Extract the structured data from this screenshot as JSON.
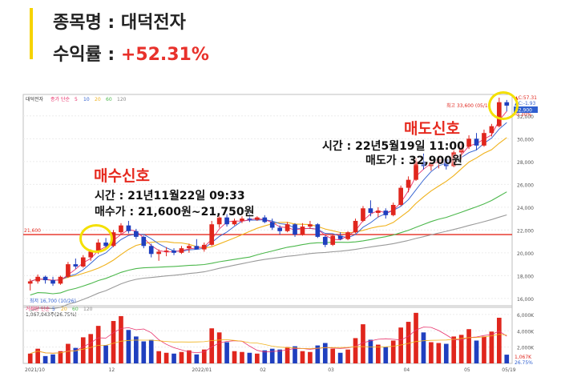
{
  "header": {
    "stock_label": "종목명 : ",
    "stock_name": "대덕전자",
    "return_label": "수익률 : ",
    "return_value": "+52.31%"
  },
  "chart_data": {
    "type": "candlestick",
    "panel_label": "대덕전자",
    "ma_legend": [
      "종가 단순",
      "5",
      "10",
      "20",
      "60",
      "120"
    ],
    "ma_colors": {
      "ma5": "#e8326b",
      "ma10": "#2f5fd0",
      "ma20": "#f0b21c",
      "ma60": "#4cb84c",
      "ma120": "#9a9a9a"
    },
    "up_color": "#e0261d",
    "down_color": "#1f3fbf",
    "y_ticks": [
      16000,
      18000,
      20000,
      22000,
      24000,
      26000,
      28000,
      30000,
      32000
    ],
    "ylim": [
      15500,
      33600
    ],
    "x_labels": [
      "2021/10",
      "12",
      "2022/01",
      "02",
      "03",
      "04",
      "05",
      "05/19"
    ],
    "reference_line": {
      "label": "21,600",
      "value": 21600,
      "color": "#e62a1f"
    },
    "low_annotation": "최저 16,700 (10/26)",
    "high_annotation": "최고 33,600 (05/1",
    "right_axis_labels": {
      "top1": "▲C:57.31",
      "top2": "▲C:-1.93",
      "pct": "-0.30%",
      "current": "32,900"
    },
    "candles": [
      [
        17300,
        17700,
        16700,
        17500
      ],
      [
        17500,
        18100,
        17300,
        17900
      ],
      [
        17900,
        18000,
        17300,
        17600
      ],
      [
        17600,
        17900,
        17100,
        17300
      ],
      [
        17300,
        18000,
        17200,
        17900
      ],
      [
        17900,
        19200,
        17800,
        19000
      ],
      [
        19000,
        19500,
        18600,
        18800
      ],
      [
        18800,
        19800,
        18700,
        19600
      ],
      [
        19600,
        20300,
        19300,
        20100
      ],
      [
        20100,
        21200,
        19900,
        20900
      ],
      [
        20900,
        21300,
        20300,
        20600
      ],
      [
        20600,
        22000,
        20500,
        21800
      ],
      [
        21800,
        22600,
        21600,
        22400
      ],
      [
        22400,
        22800,
        21700,
        21900
      ],
      [
        21900,
        22100,
        21200,
        21400
      ],
      [
        21400,
        21500,
        20400,
        20600
      ],
      [
        20600,
        20800,
        19600,
        19900
      ],
      [
        19900,
        20300,
        19300,
        20100
      ],
      [
        20100,
        20500,
        19700,
        20200
      ],
      [
        20200,
        20400,
        19800,
        20000
      ],
      [
        20000,
        20600,
        19900,
        20400
      ],
      [
        20400,
        20800,
        20000,
        20600
      ],
      [
        20600,
        21200,
        20300,
        20300
      ],
      [
        20300,
        20900,
        20100,
        20700
      ],
      [
        20700,
        22800,
        20600,
        22500
      ],
      [
        22500,
        23300,
        22200,
        23100
      ],
      [
        23100,
        23400,
        22300,
        22500
      ],
      [
        22500,
        23000,
        22400,
        22800
      ],
      [
        22800,
        23200,
        22600,
        23000
      ],
      [
        23000,
        23500,
        22700,
        22900
      ],
      [
        22900,
        23200,
        22800,
        23100
      ],
      [
        23100,
        23300,
        22600,
        22700
      ],
      [
        22700,
        23000,
        22000,
        22200
      ],
      [
        22200,
        22400,
        21600,
        21900
      ],
      [
        21900,
        22700,
        21800,
        22500
      ],
      [
        22500,
        22600,
        21400,
        21600
      ],
      [
        21600,
        22600,
        21500,
        22300
      ],
      [
        22300,
        22800,
        22100,
        22500
      ],
      [
        22500,
        22600,
        21300,
        21400
      ],
      [
        21400,
        21500,
        20500,
        20700
      ],
      [
        20700,
        21600,
        20600,
        21500
      ],
      [
        21500,
        21800,
        21100,
        21200
      ],
      [
        21200,
        21900,
        21100,
        21800
      ],
      [
        21800,
        23000,
        21700,
        22800
      ],
      [
        22800,
        24100,
        22700,
        23900
      ],
      [
        23900,
        24600,
        23200,
        23500
      ],
      [
        23500,
        24000,
        23100,
        23700
      ],
      [
        23700,
        23900,
        23000,
        23300
      ],
      [
        23300,
        24400,
        23200,
        24200
      ],
      [
        24200,
        25900,
        24100,
        25700
      ],
      [
        25700,
        26700,
        25300,
        26400
      ],
      [
        26400,
        28300,
        26300,
        28000
      ],
      [
        28000,
        28700,
        27300,
        27600
      ],
      [
        27600,
        28200,
        27200,
        27900
      ],
      [
        27900,
        28500,
        27400,
        28200
      ],
      [
        28200,
        28400,
        27300,
        27600
      ],
      [
        27600,
        29000,
        27500,
        28800
      ],
      [
        28800,
        29600,
        28200,
        29300
      ],
      [
        29300,
        30300,
        29100,
        30000
      ],
      [
        30000,
        30500,
        29000,
        29400
      ],
      [
        29400,
        30800,
        29300,
        30500
      ],
      [
        30500,
        31300,
        30200,
        31100
      ],
      [
        31100,
        33600,
        31000,
        33200
      ],
      [
        33200,
        33400,
        32400,
        32900
      ]
    ],
    "volume_legend": [
      "거래량",
      "단순",
      "5",
      "20",
      "60",
      "120"
    ],
    "volume_readout": "1,067,943주(26.75%)",
    "volume_ticks": [
      "6,000K",
      "4,000K",
      "2,000K"
    ],
    "volume_max_label_value": 6000,
    "volume_bottom_labels": [
      "1,067K",
      "26.75%"
    ],
    "volumes": [
      1200,
      1800,
      900,
      1100,
      1500,
      2400,
      1900,
      3200,
      3600,
      4600,
      2200,
      5200,
      5800,
      4100,
      3300,
      2700,
      2900,
      1500,
      1300,
      1200,
      1400,
      1600,
      1100,
      1700,
      4300,
      3800,
      2600,
      1500,
      1400,
      1300,
      1200,
      1600,
      1800,
      1700,
      2000,
      2100,
      1500,
      1400,
      2200,
      2500,
      1800,
      1300,
      1700,
      3100,
      4800,
      2900,
      2300,
      2000,
      2800,
      4400,
      5100,
      6200,
      3800,
      2600,
      2500,
      2400,
      3300,
      3500,
      4200,
      2800,
      3300,
      3900,
      5600,
      1070
    ]
  },
  "buy_signal": {
    "title": "매수신호",
    "time_line": "시간 : 21년11월22일 09:33",
    "price_line": "매수가 : 21,600원~21,750원"
  },
  "sell_signal": {
    "title": "매도신호",
    "time_line": "시간 : 22년5월19일 11:00",
    "price_line": "매도가 : 32,900원"
  }
}
